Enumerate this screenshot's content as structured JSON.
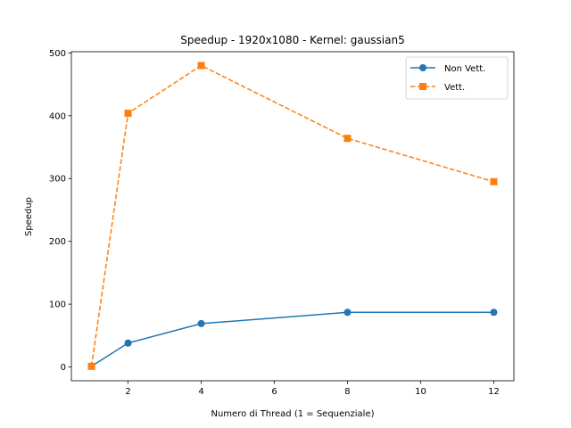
{
  "chart_data": {
    "type": "line",
    "title": "Speedup - 1920x1080 - Kernel: gaussian5",
    "xlabel": "Numero di Thread (1 = Sequenziale)",
    "ylabel": "Speedup",
    "x": [
      1,
      2,
      4,
      8,
      12
    ],
    "xlim": [
      0.45,
      12.55
    ],
    "ylim": [
      -22,
      502
    ],
    "xticks": [
      2,
      4,
      6,
      8,
      10,
      12
    ],
    "yticks": [
      0,
      100,
      200,
      300,
      400,
      500
    ],
    "grid": false,
    "legend_position": "top-right",
    "series": [
      {
        "name": "Non Vett.",
        "values": [
          1,
          38,
          69,
          87,
          87
        ],
        "color": "#1f77b4",
        "marker": "circle",
        "linestyle": "solid"
      },
      {
        "name": "Vett.",
        "values": [
          1,
          404,
          480,
          364,
          295
        ],
        "color": "#ff7f0e",
        "marker": "square",
        "linestyle": "dashed"
      }
    ]
  }
}
